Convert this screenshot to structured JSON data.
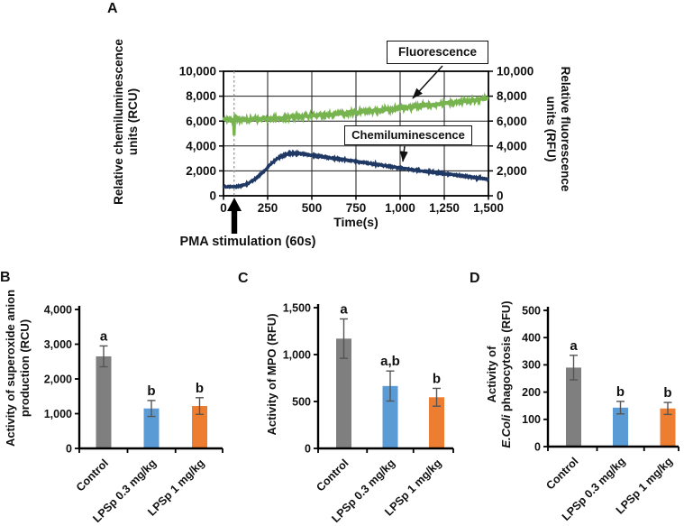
{
  "panels": {
    "A": {
      "letter": "A",
      "left_axis_title": [
        "Relative chemiluminescence",
        "units (RCU)"
      ],
      "right_axis_title": [
        "Relative fluorescence",
        "units (RFU)"
      ],
      "x_axis_title": "Time(s)",
      "annotation": "PMA stimulation (60s)",
      "legend": {
        "fluorescence": "Fluorescence",
        "chemiluminescence": "Chemiluminescence"
      }
    },
    "B": {
      "letter": "B",
      "y_axis_title": [
        "Activity of superoxide anion",
        "production (RCU)"
      ]
    },
    "C": {
      "letter": "C",
      "y_axis_title": [
        "Activity of MPO (RFU)"
      ]
    },
    "D": {
      "letter": "D",
      "y_axis_title_line1": "Activity of",
      "y_axis_title_italic": "E.Coli",
      "y_axis_title_rest": " phagocytosis (RFU)"
    }
  },
  "colors": {
    "control_bar": "#7F7F7F",
    "lpsp03_bar": "#5B9BD5",
    "lpsp1_bar": "#ED7D31",
    "fluorescence_line": "#77B34E",
    "chemiluminescence_line": "#1F3864",
    "error_bar": "#555555",
    "dashed_event_line": "#909090"
  },
  "chart_data": [
    {
      "type": "line",
      "panel": "A",
      "title": "",
      "xlabel": "Time(s)",
      "ylabel_left": "Relative chemiluminescence units (RCU)",
      "ylabel_right": "Relative fluorescence units (RFU)",
      "xlim": [
        0,
        1500
      ],
      "ylim": [
        0,
        10000
      ],
      "x_ticks": [
        0,
        250,
        500,
        750,
        1000,
        1250,
        1500
      ],
      "x_tick_labels": [
        "0",
        "250",
        "500",
        "750",
        "1,000",
        "1,250",
        "1,500"
      ],
      "y_ticks": [
        0,
        2000,
        4000,
        6000,
        8000,
        10000
      ],
      "y_tick_labels": [
        "0",
        "2,000",
        "4,000",
        "6,000",
        "8,000",
        "10,000"
      ],
      "grid": true,
      "legend_position": "inside-boxes-with-arrows",
      "stimulation_event": {
        "x": 60,
        "label": "PMA stimulation (60s)"
      },
      "series": [
        {
          "name": "Fluorescence",
          "axis": "right",
          "color": "#77B34E",
          "noise_amplitude": 150,
          "keypoints": [
            [
              0,
              6150
            ],
            [
              40,
              6150
            ],
            [
              55,
              6050
            ],
            [
              60,
              4900
            ],
            [
              64,
              6400
            ],
            [
              80,
              6150
            ],
            [
              150,
              6150
            ],
            [
              250,
              6220
            ],
            [
              375,
              6300
            ],
            [
              500,
              6430
            ],
            [
              625,
              6550
            ],
            [
              750,
              6700
            ],
            [
              875,
              6850
            ],
            [
              1000,
              7030
            ],
            [
              1125,
              7220
            ],
            [
              1250,
              7400
            ],
            [
              1375,
              7600
            ],
            [
              1500,
              7820
            ]
          ]
        },
        {
          "name": "Chemiluminescence",
          "axis": "left",
          "color": "#1F3864",
          "noise_amplitude": 45,
          "keypoints": [
            [
              0,
              750
            ],
            [
              60,
              720
            ],
            [
              100,
              780
            ],
            [
              140,
              1000
            ],
            [
              180,
              1350
            ],
            [
              220,
              1850
            ],
            [
              260,
              2450
            ],
            [
              300,
              2950
            ],
            [
              340,
              3250
            ],
            [
              380,
              3400
            ],
            [
              420,
              3400
            ],
            [
              460,
              3340
            ],
            [
              500,
              3250
            ],
            [
              600,
              3060
            ],
            [
              700,
              2860
            ],
            [
              800,
              2650
            ],
            [
              900,
              2450
            ],
            [
              1000,
              2230
            ],
            [
              1100,
              2030
            ],
            [
              1200,
              1850
            ],
            [
              1300,
              1700
            ],
            [
              1400,
              1500
            ],
            [
              1500,
              1320
            ]
          ]
        }
      ]
    },
    {
      "type": "bar",
      "panel": "B",
      "title": "",
      "xlabel": "",
      "ylabel": "Activity of superoxide anion production (RCU)",
      "categories": [
        "Control",
        "LPSp 0.3 mg/kg",
        "LPSp 1 mg/kg"
      ],
      "values": [
        2650,
        1150,
        1220
      ],
      "errors": [
        300,
        230,
        240
      ],
      "sig_labels": [
        "a",
        "b",
        "b"
      ],
      "bar_colors": [
        "#7F7F7F",
        "#5B9BD5",
        "#ED7D31"
      ],
      "ylim": [
        0,
        4000
      ],
      "y_ticks": [
        0,
        1000,
        2000,
        3000,
        4000
      ],
      "y_tick_labels": [
        "0",
        "1,000",
        "2,000",
        "3,000",
        "4,000"
      ],
      "grid": false
    },
    {
      "type": "bar",
      "panel": "C",
      "title": "",
      "xlabel": "",
      "ylabel": "Activity of MPO (RFU)",
      "categories": [
        "Control",
        "LPSp 0.3 mg/kg",
        "LPSp 1 mg/kg"
      ],
      "values": [
        1170,
        665,
        545
      ],
      "errors": [
        210,
        160,
        95
      ],
      "sig_labels": [
        "a",
        "a,b",
        "b"
      ],
      "bar_colors": [
        "#7F7F7F",
        "#5B9BD5",
        "#ED7D31"
      ],
      "ylim": [
        0,
        1500
      ],
      "y_ticks": [
        0,
        500,
        1000,
        1500
      ],
      "y_tick_labels": [
        "0",
        "500",
        "1,000",
        "1,500"
      ],
      "grid": false
    },
    {
      "type": "bar",
      "panel": "D",
      "title": "",
      "xlabel": "",
      "ylabel": "Activity of E.Coli phagocytosis (RFU)",
      "categories": [
        "Control",
        "LPSp 0.3 mg/kg",
        "LPSp 1 mg/kg"
      ],
      "values": [
        290,
        143,
        140
      ],
      "errors": [
        45,
        23,
        22
      ],
      "sig_labels": [
        "a",
        "b",
        "b"
      ],
      "bar_colors": [
        "#7F7F7F",
        "#5B9BD5",
        "#ED7D31"
      ],
      "ylim": [
        0,
        500
      ],
      "y_ticks": [
        0,
        100,
        200,
        300,
        400,
        500
      ],
      "y_tick_labels": [
        "0",
        "100",
        "200",
        "300",
        "400",
        "500"
      ],
      "grid": false
    }
  ]
}
